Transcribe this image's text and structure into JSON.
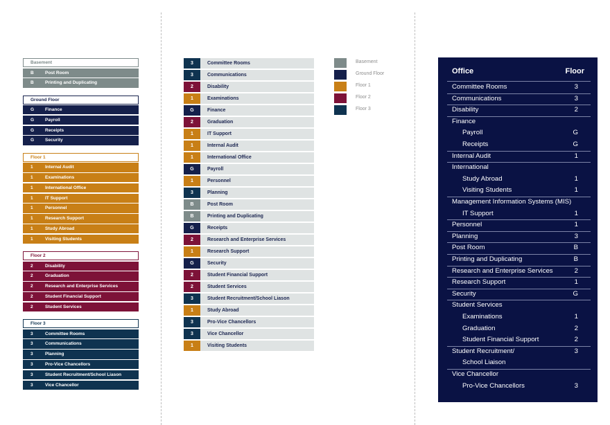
{
  "colors": {
    "basement": "#7e8b8a",
    "ground": "#15204b",
    "floor1": "#c87f16",
    "floor2": "#7d1238",
    "floor3": "#0f3350",
    "row_bg": "#dfe3e3",
    "panel_bg": "#0a1244"
  },
  "floor_groups": [
    {
      "title": "Basement",
      "key": "basement",
      "items": [
        {
          "code": "B",
          "name": "Post Room"
        },
        {
          "code": "B",
          "name": "Printing and Duplicating"
        }
      ]
    },
    {
      "title": "Ground Floor",
      "key": "ground",
      "items": [
        {
          "code": "G",
          "name": "Finance"
        },
        {
          "code": "G",
          "name": "Payroll"
        },
        {
          "code": "G",
          "name": "Receipts"
        },
        {
          "code": "G",
          "name": "Security"
        }
      ]
    },
    {
      "title": "Floor 1",
      "key": "floor1",
      "items": [
        {
          "code": "1",
          "name": "Internal Audit"
        },
        {
          "code": "1",
          "name": "Examinations"
        },
        {
          "code": "1",
          "name": "International Office"
        },
        {
          "code": "1",
          "name": "IT Support"
        },
        {
          "code": "1",
          "name": "Personnel"
        },
        {
          "code": "1",
          "name": "Research Support"
        },
        {
          "code": "1",
          "name": "Study Abroad"
        },
        {
          "code": "1",
          "name": "Visiting Students"
        }
      ]
    },
    {
      "title": "Floor 2",
      "key": "floor2",
      "items": [
        {
          "code": "2",
          "name": "Disability"
        },
        {
          "code": "2",
          "name": "Graduation"
        },
        {
          "code": "2",
          "name": "Research and Enterprise Services"
        },
        {
          "code": "2",
          "name": "Student Financial Support"
        },
        {
          "code": "2",
          "name": "Student Services"
        }
      ]
    },
    {
      "title": "Floor 3",
      "key": "floor3",
      "items": [
        {
          "code": "3",
          "name": "Committee Rooms"
        },
        {
          "code": "3",
          "name": "Communications"
        },
        {
          "code": "3",
          "name": "Planning"
        },
        {
          "code": "3",
          "name": "Pro-Vice Chancellors"
        },
        {
          "code": "3",
          "name": "Student Recruitment/School Liason"
        },
        {
          "code": "3",
          "name": "Vice Chancellor"
        }
      ]
    }
  ],
  "alpha_list": [
    {
      "code": "3",
      "name": "Committee Rooms",
      "key": "floor3"
    },
    {
      "code": "3",
      "name": "Communications",
      "key": "floor3"
    },
    {
      "code": "2",
      "name": "Disability",
      "key": "floor2"
    },
    {
      "code": "1",
      "name": "Examinations",
      "key": "floor1"
    },
    {
      "code": "G",
      "name": "Finance",
      "key": "ground"
    },
    {
      "code": "2",
      "name": "Graduation",
      "key": "floor2"
    },
    {
      "code": "1",
      "name": "IT Support",
      "key": "floor1"
    },
    {
      "code": "1",
      "name": "Internal Audit",
      "key": "floor1"
    },
    {
      "code": "1",
      "name": "International Office",
      "key": "floor1"
    },
    {
      "code": "G",
      "name": "Payroll",
      "key": "ground"
    },
    {
      "code": "1",
      "name": "Personnel",
      "key": "floor1"
    },
    {
      "code": "3",
      "name": "Planning",
      "key": "floor3"
    },
    {
      "code": "B",
      "name": "Post Room",
      "key": "basement"
    },
    {
      "code": "B",
      "name": "Printing and Duplicating",
      "key": "basement"
    },
    {
      "code": "G",
      "name": "Receipts",
      "key": "ground"
    },
    {
      "code": "2",
      "name": "Research and Enterprise Services",
      "key": "floor2"
    },
    {
      "code": "1",
      "name": "Research Support",
      "key": "floor1"
    },
    {
      "code": "G",
      "name": "Security",
      "key": "ground"
    },
    {
      "code": "2",
      "name": "Student Financial Support",
      "key": "floor2"
    },
    {
      "code": "2",
      "name": "Student Services",
      "key": "floor2"
    },
    {
      "code": "3",
      "name": "Student Recruitment/School Liason",
      "key": "floor3"
    },
    {
      "code": "1",
      "name": "Study Abroad",
      "key": "floor1"
    },
    {
      "code": "3",
      "name": "Pro-Vice Chancellors",
      "key": "floor3"
    },
    {
      "code": "3",
      "name": "Vice Chancellor",
      "key": "floor3"
    },
    {
      "code": "1",
      "name": "Visiting Students",
      "key": "floor1"
    }
  ],
  "legend": [
    {
      "label": "Basement",
      "key": "basement"
    },
    {
      "label": "Ground Floor",
      "key": "ground"
    },
    {
      "label": "Floor 1",
      "key": "floor1"
    },
    {
      "label": "Floor 2",
      "key": "floor2"
    },
    {
      "label": "Floor 3",
      "key": "floor3"
    }
  ],
  "table": {
    "header_office": "Office",
    "header_floor": "Floor",
    "rows": [
      {
        "name": "Committee Rooms",
        "floor": "3",
        "sub": false,
        "line": true
      },
      {
        "name": "Communications",
        "floor": "3",
        "sub": false,
        "line": true
      },
      {
        "name": "Disability",
        "floor": "2",
        "sub": false,
        "line": true
      },
      {
        "name": "Finance",
        "floor": "",
        "sub": false,
        "line": false
      },
      {
        "name": "Payroll",
        "floor": "G",
        "sub": true,
        "line": false
      },
      {
        "name": "Receipts",
        "floor": "G",
        "sub": true,
        "line": true
      },
      {
        "name": "Internal Audit",
        "floor": "1",
        "sub": false,
        "line": true
      },
      {
        "name": "International",
        "floor": "",
        "sub": false,
        "line": false
      },
      {
        "name": "Study Abroad",
        "floor": "1",
        "sub": true,
        "line": false
      },
      {
        "name": "Visiting Students",
        "floor": "1",
        "sub": true,
        "line": true
      },
      {
        "name": "Management Information Systems (MIS)",
        "floor": "",
        "sub": false,
        "line": false
      },
      {
        "name": "IT Support",
        "floor": "1",
        "sub": true,
        "line": true
      },
      {
        "name": "Personnel",
        "floor": "1",
        "sub": false,
        "line": true
      },
      {
        "name": "Planning",
        "floor": "3",
        "sub": false,
        "line": true
      },
      {
        "name": "Post Room",
        "floor": "B",
        "sub": false,
        "line": true
      },
      {
        "name": "Printing and Duplicating",
        "floor": "B",
        "sub": false,
        "line": true
      },
      {
        "name": "Research and Enterprise Services",
        "floor": "2",
        "sub": false,
        "line": true
      },
      {
        "name": "Research Support",
        "floor": "1",
        "sub": false,
        "line": true
      },
      {
        "name": "Security",
        "floor": "G",
        "sub": false,
        "line": true
      },
      {
        "name": "Student Services",
        "floor": "",
        "sub": false,
        "line": false
      },
      {
        "name": "Examinations",
        "floor": "1",
        "sub": true,
        "line": false
      },
      {
        "name": "Graduation",
        "floor": "2",
        "sub": true,
        "line": false
      },
      {
        "name": "Student Financial Support",
        "floor": "2",
        "sub": true,
        "line": true
      },
      {
        "name": "Student Recruitment/",
        "floor": "3",
        "sub": false,
        "line": false
      },
      {
        "name": "School Liaison",
        "floor": "",
        "sub": true,
        "line": true
      },
      {
        "name": "Vice Chancellor",
        "floor": "",
        "sub": false,
        "line": false
      },
      {
        "name": "Pro-Vice Chancellors",
        "floor": "3",
        "sub": true,
        "line": false
      }
    ]
  }
}
